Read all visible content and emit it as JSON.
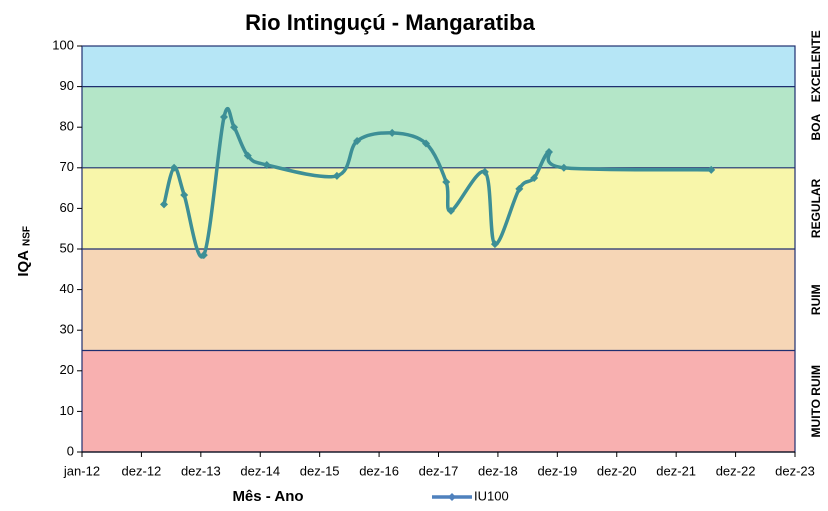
{
  "chart_data": {
    "type": "line",
    "title": "Rio Intinguçú - Mangaratiba",
    "xlabel": "Mês - Ano",
    "ylabel": "IQA",
    "ylabel_sub": "NSF",
    "xlim": [
      2012,
      2024
    ],
    "xticks": [
      {
        "value": 2012,
        "label": "jan-12"
      },
      {
        "value": 2013,
        "label": "dez-12"
      },
      {
        "value": 2014,
        "label": "dez-13"
      },
      {
        "value": 2015,
        "label": "dez-14"
      },
      {
        "value": 2016,
        "label": "dez-15"
      },
      {
        "value": 2017,
        "label": "dez-16"
      },
      {
        "value": 2018,
        "label": "dez-17"
      },
      {
        "value": 2019,
        "label": "dez-18"
      },
      {
        "value": 2020,
        "label": "dez-19"
      },
      {
        "value": 2021,
        "label": "dez-20"
      },
      {
        "value": 2022,
        "label": "dez-21"
      },
      {
        "value": 2023,
        "label": "dez-22"
      },
      {
        "value": 2024,
        "label": "dez-23"
      }
    ],
    "ylim": [
      0,
      100
    ],
    "yticks": [
      0,
      10,
      20,
      30,
      40,
      50,
      60,
      70,
      80,
      90,
      100
    ],
    "bands": [
      {
        "from": 0,
        "to": 25,
        "label": "MUITO RUIM",
        "color": "#f8b0b0"
      },
      {
        "from": 25,
        "to": 50,
        "label": "RUIM",
        "color": "#f6d6b6"
      },
      {
        "from": 50,
        "to": 70,
        "label": "REGULAR",
        "color": "#f8f6aa"
      },
      {
        "from": 70,
        "to": 90,
        "label": "BOA",
        "color": "#b4e6c8"
      },
      {
        "from": 90,
        "to": 100,
        "label": "EXCELENTE",
        "color": "#b6e6f6"
      }
    ],
    "legend": "bottom",
    "series": [
      {
        "name": "IU100",
        "color": "#3d8f96",
        "x": [
          2013.38,
          2013.55,
          2013.72,
          2014.05,
          2014.39,
          2014.56,
          2014.79,
          2015.11,
          2016.29,
          2016.63,
          2017.22,
          2017.79,
          2018.13,
          2018.21,
          2018.78,
          2018.95,
          2019.36,
          2019.61,
          2019.86,
          2020.11,
          2022.59
        ],
        "values": [
          61,
          70,
          63.3,
          48.5,
          82.5,
          80,
          73,
          70.7,
          68,
          76.6,
          78.6,
          76,
          66.5,
          59.4,
          69,
          51.2,
          64.8,
          67.5,
          73.9,
          70,
          69.5
        ]
      }
    ]
  }
}
